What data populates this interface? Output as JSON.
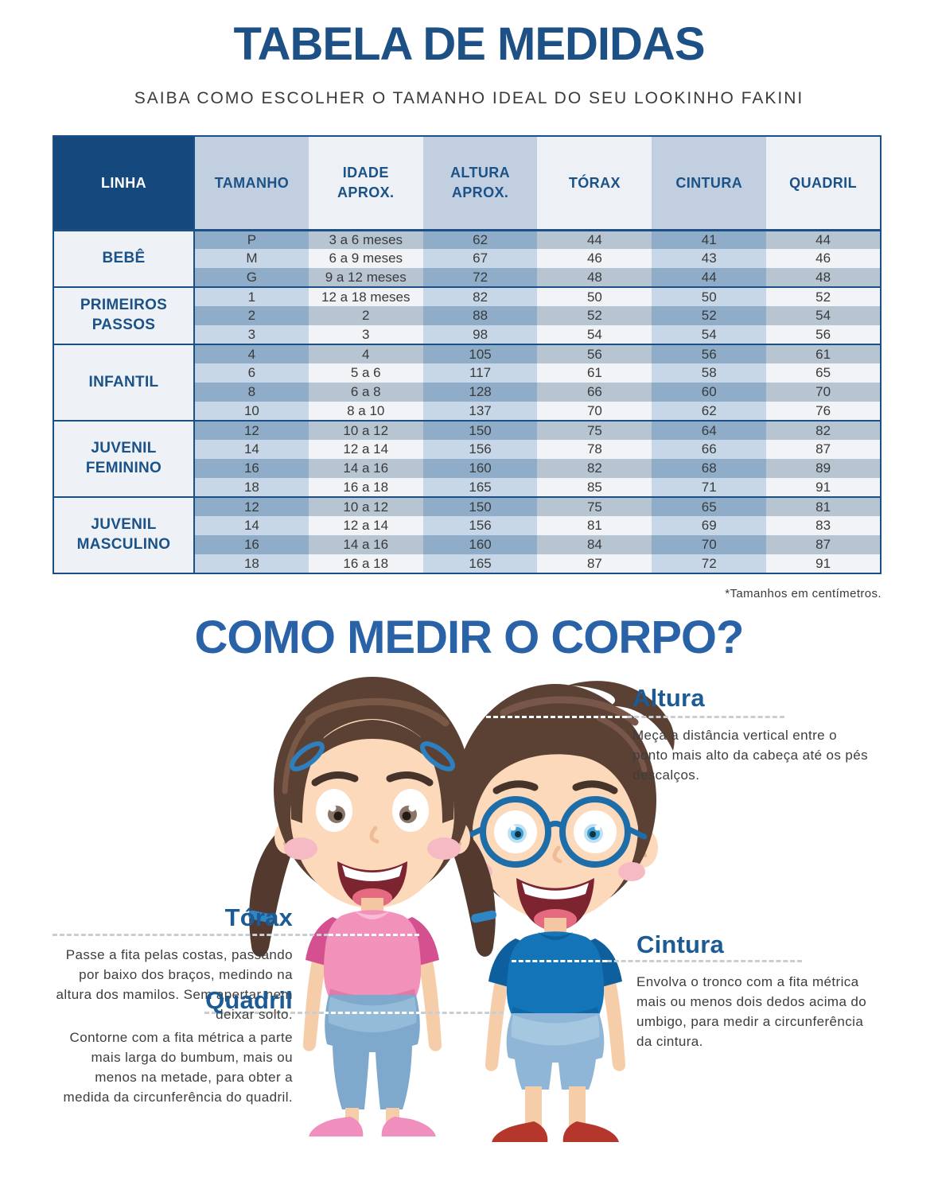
{
  "page": {
    "title": "TABELA DE MEDIDAS",
    "subtitle": "SAIBA COMO ESCOLHER O TAMANHO IDEAL DO SEU LOOKINHO FAKINI",
    "footnote": "*Tamanhos em centímetros.",
    "section_title": "COMO MEDIR O CORPO?"
  },
  "colors": {
    "navy_header": "#15497e",
    "navy_border": "#1b4f85",
    "title_blue": "#1d5084",
    "section_title_blue": "#2a62a8",
    "guide_label_blue": "#1c5b94",
    "row_dark_strong": "#8fadc9",
    "row_dark_weak": "#b7c5d3",
    "row_light_strong": "#c7d7e7",
    "row_light_weak": "#f2f3f6"
  },
  "table": {
    "columns": [
      "LINHA",
      "TAMANHO",
      "IDADE APROX.",
      "ALTURA APROX.",
      "TÓRAX",
      "CINTURA",
      "QUADRIL"
    ],
    "sections": [
      {
        "linha": "BEBÊ",
        "rows": [
          [
            "P",
            "3 a 6 meses",
            "62",
            "44",
            "41",
            "44"
          ],
          [
            "M",
            "6 a 9 meses",
            "67",
            "46",
            "43",
            "46"
          ],
          [
            "G",
            "9 a 12 meses",
            "72",
            "48",
            "44",
            "48"
          ]
        ]
      },
      {
        "linha": "PRIMEIROS PASSOS",
        "rows": [
          [
            "1",
            "12 a 18 meses",
            "82",
            "50",
            "50",
            "52"
          ],
          [
            "2",
            "2",
            "88",
            "52",
            "52",
            "54"
          ],
          [
            "3",
            "3",
            "98",
            "54",
            "54",
            "56"
          ]
        ]
      },
      {
        "linha": "INFANTIL",
        "rows": [
          [
            "4",
            "4",
            "105",
            "56",
            "56",
            "61"
          ],
          [
            "6",
            "5 a 6",
            "117",
            "61",
            "58",
            "65"
          ],
          [
            "8",
            "6 a 8",
            "128",
            "66",
            "60",
            "70"
          ],
          [
            "10",
            "8 a 10",
            "137",
            "70",
            "62",
            "76"
          ]
        ]
      },
      {
        "linha": "JUVENIL FEMININO",
        "rows": [
          [
            "12",
            "10 a 12",
            "150",
            "75",
            "64",
            "82"
          ],
          [
            "14",
            "12 a 14",
            "156",
            "78",
            "66",
            "87"
          ],
          [
            "16",
            "14 a 16",
            "160",
            "82",
            "68",
            "89"
          ],
          [
            "18",
            "16 a 18",
            "165",
            "85",
            "71",
            "91"
          ]
        ]
      },
      {
        "linha": "JUVENIL MASCULINO",
        "rows": [
          [
            "12",
            "10 a 12",
            "150",
            "75",
            "65",
            "81"
          ],
          [
            "14",
            "12 a 14",
            "156",
            "81",
            "69",
            "83"
          ],
          [
            "16",
            "14 a 16",
            "160",
            "84",
            "70",
            "87"
          ],
          [
            "18",
            "16 a 18",
            "165",
            "87",
            "72",
            "91"
          ]
        ]
      }
    ]
  },
  "measure_guide": {
    "altura": {
      "label": "Altura",
      "text": "Meça a distância vertical entre o ponto mais alto da cabeça até os pés descalços."
    },
    "torax": {
      "label": "Tórax",
      "text": "Passe a fita pelas costas, passando por baixo dos braços, medindo na altura dos mamilos. Sem apertar nem deixar solto."
    },
    "quadril": {
      "label": "Quadril",
      "text": "Contorne com a fita métrica a parte mais larga do bumbum, mais ou menos na metade, para obter a medida da circunferência do quadril."
    },
    "cintura": {
      "label": "Cintura",
      "text": "Envolva o tronco com a fita métrica mais ou menos dois dedos acima do umbigo, para medir a circunferência da cintura."
    }
  }
}
